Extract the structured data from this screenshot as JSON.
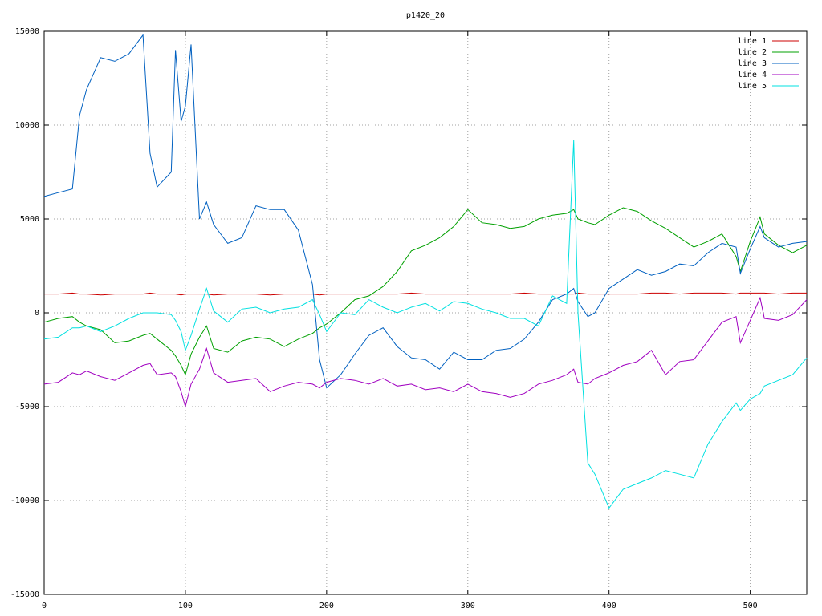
{
  "chart_data": {
    "type": "line",
    "title": "p1420_20",
    "x": [
      0,
      10,
      20,
      25,
      30,
      40,
      50,
      60,
      70,
      75,
      80,
      90,
      93,
      97,
      100,
      104,
      110,
      115,
      120,
      130,
      140,
      150,
      160,
      170,
      180,
      190,
      195,
      200,
      210,
      220,
      230,
      240,
      250,
      260,
      270,
      280,
      290,
      300,
      310,
      320,
      330,
      340,
      350,
      360,
      370,
      375,
      378,
      385,
      390,
      400,
      410,
      420,
      430,
      440,
      450,
      460,
      470,
      480,
      490,
      493,
      500,
      507,
      510,
      520,
      530,
      540
    ],
    "series": [
      {
        "name": "line 1",
        "color": "#cc0000",
        "values": [
          1000,
          1000,
          1050,
          1000,
          1000,
          950,
          1000,
          1000,
          1000,
          1050,
          1000,
          1000,
          1000,
          950,
          1000,
          1000,
          1000,
          1000,
          950,
          1000,
          1000,
          1000,
          950,
          1000,
          1000,
          1000,
          950,
          1000,
          1000,
          1000,
          1000,
          1000,
          1000,
          1050,
          1000,
          1000,
          1000,
          1000,
          1000,
          1000,
          1000,
          1050,
          1000,
          1000,
          1000,
          1000,
          1050,
          1000,
          1000,
          1000,
          1000,
          1000,
          1050,
          1050,
          1000,
          1050,
          1050,
          1050,
          1000,
          1050,
          1050,
          1050,
          1050,
          1000,
          1050,
          1050
        ]
      },
      {
        "name": "line 2",
        "color": "#00a000",
        "values": [
          -500,
          -300,
          -200,
          -500,
          -700,
          -900,
          -1600,
          -1500,
          -1200,
          -1100,
          -1400,
          -2000,
          -2300,
          -2800,
          -3300,
          -2200,
          -1300,
          -700,
          -1900,
          -2100,
          -1500,
          -1300,
          -1400,
          -1800,
          -1400,
          -1100,
          -800,
          -600,
          0,
          700,
          900,
          1400,
          2200,
          3300,
          3600,
          4000,
          4600,
          5500,
          4800,
          4700,
          4500,
          4600,
          5000,
          5200,
          5300,
          5500,
          5000,
          4800,
          4700,
          5200,
          5600,
          5400,
          4900,
          4500,
          4000,
          3500,
          3800,
          4200,
          3000,
          2200,
          3800,
          5100,
          4200,
          3600,
          3200,
          3600
        ]
      },
      {
        "name": "line 3",
        "color": "#0060c0",
        "values": [
          6200,
          6400,
          6600,
          10500,
          11900,
          13600,
          13400,
          13800,
          14800,
          8500,
          6700,
          7500,
          14000,
          10200,
          11000,
          14300,
          5000,
          5900,
          4700,
          3700,
          4000,
          5700,
          5500,
          5500,
          4400,
          1500,
          -2500,
          -4000,
          -3300,
          -2200,
          -1200,
          -800,
          -1800,
          -2400,
          -2500,
          -3000,
          -2100,
          -2500,
          -2500,
          -2000,
          -1900,
          -1400,
          -500,
          700,
          1000,
          1300,
          600,
          -200,
          0,
          1300,
          1800,
          2300,
          2000,
          2200,
          2600,
          2500,
          3200,
          3700,
          3500,
          2100,
          3400,
          4600,
          4000,
          3500,
          3700,
          3800
        ]
      },
      {
        "name": "line 4",
        "color": "#a000c0",
        "values": [
          -3800,
          -3700,
          -3200,
          -3300,
          -3100,
          -3400,
          -3600,
          -3200,
          -2800,
          -2700,
          -3300,
          -3200,
          -3400,
          -4200,
          -5000,
          -3800,
          -3000,
          -1900,
          -3200,
          -3700,
          -3600,
          -3500,
          -4200,
          -3900,
          -3700,
          -3800,
          -4000,
          -3700,
          -3500,
          -3600,
          -3800,
          -3500,
          -3900,
          -3800,
          -4100,
          -4000,
          -4200,
          -3800,
          -4200,
          -4300,
          -4500,
          -4300,
          -3800,
          -3600,
          -3300,
          -3000,
          -3700,
          -3800,
          -3500,
          -3200,
          -2800,
          -2600,
          -2000,
          -3300,
          -2600,
          -2500,
          -1500,
          -500,
          -200,
          -1600,
          -400,
          800,
          -300,
          -400,
          -100,
          700
        ]
      },
      {
        "name": "line 5",
        "color": "#00e0e0",
        "values": [
          -1400,
          -1300,
          -800,
          -800,
          -700,
          -1000,
          -700,
          -300,
          0,
          0,
          0,
          -100,
          -400,
          -1000,
          -2000,
          -1200,
          200,
          1300,
          100,
          -500,
          200,
          300,
          0,
          200,
          300,
          700,
          -100,
          -1000,
          0,
          -100,
          700,
          300,
          0,
          300,
          500,
          100,
          600,
          500,
          200,
          0,
          -300,
          -300,
          -700,
          900,
          500,
          9200,
          0,
          -8000,
          -8600,
          -10400,
          -9400,
          -9100,
          -8800,
          -8400,
          -8600,
          -8800,
          -7000,
          -5800,
          -4800,
          -5200,
          -4600,
          -4300,
          -3900,
          -3600,
          -3300,
          -2400
        ]
      }
    ],
    "xlim": [
      0,
      540
    ],
    "xticks": [
      0,
      100,
      200,
      300,
      400,
      500
    ],
    "ylim": [
      -15000,
      15000
    ],
    "yticks": [
      -15000,
      -10000,
      -5000,
      0,
      5000,
      10000,
      15000
    ],
    "grid": true,
    "legend": "top-right"
  }
}
